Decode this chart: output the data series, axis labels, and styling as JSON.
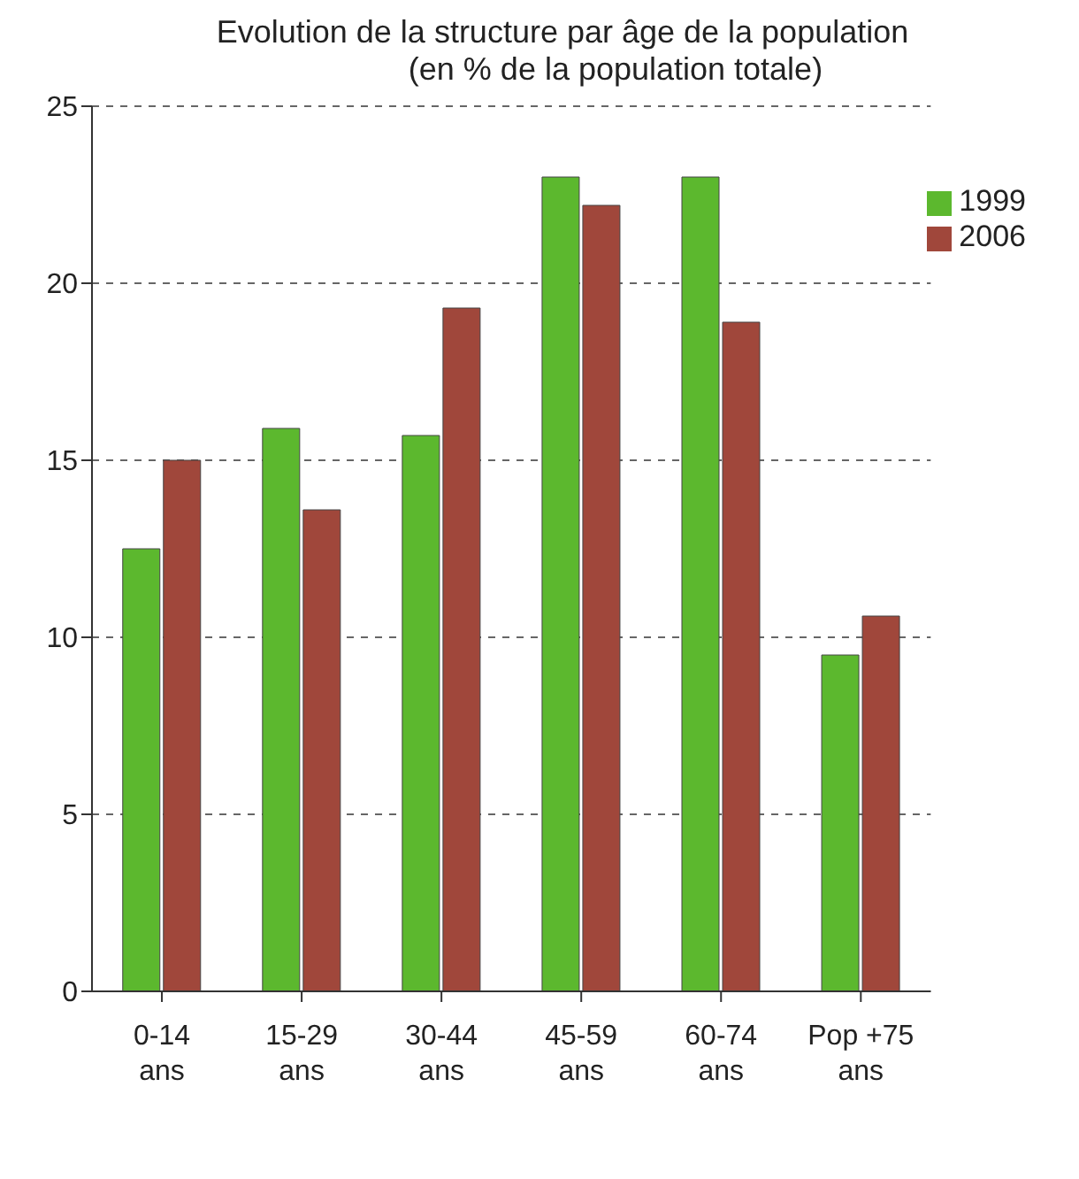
{
  "chart_data": {
    "type": "bar",
    "title": "Evolution de la structure par âge de la population",
    "subtitle": "(en % de la population totale)",
    "categories": [
      "0-14 ans",
      "15-29 ans",
      "30-44 ans",
      "45-59 ans",
      "60-74 ans",
      "Pop +75 ans"
    ],
    "series": [
      {
        "name": "1999",
        "color": "#5cb82e",
        "values": [
          12.5,
          15.9,
          15.7,
          23.0,
          23.0,
          9.5
        ]
      },
      {
        "name": "2006",
        "color": "#a0473b",
        "values": [
          15.0,
          13.6,
          19.3,
          22.2,
          18.9,
          10.6
        ]
      }
    ],
    "ylim": [
      0,
      25
    ],
    "yticks": [
      0,
      5,
      10,
      15,
      20,
      25
    ],
    "grid": "y",
    "legend": "top right"
  }
}
